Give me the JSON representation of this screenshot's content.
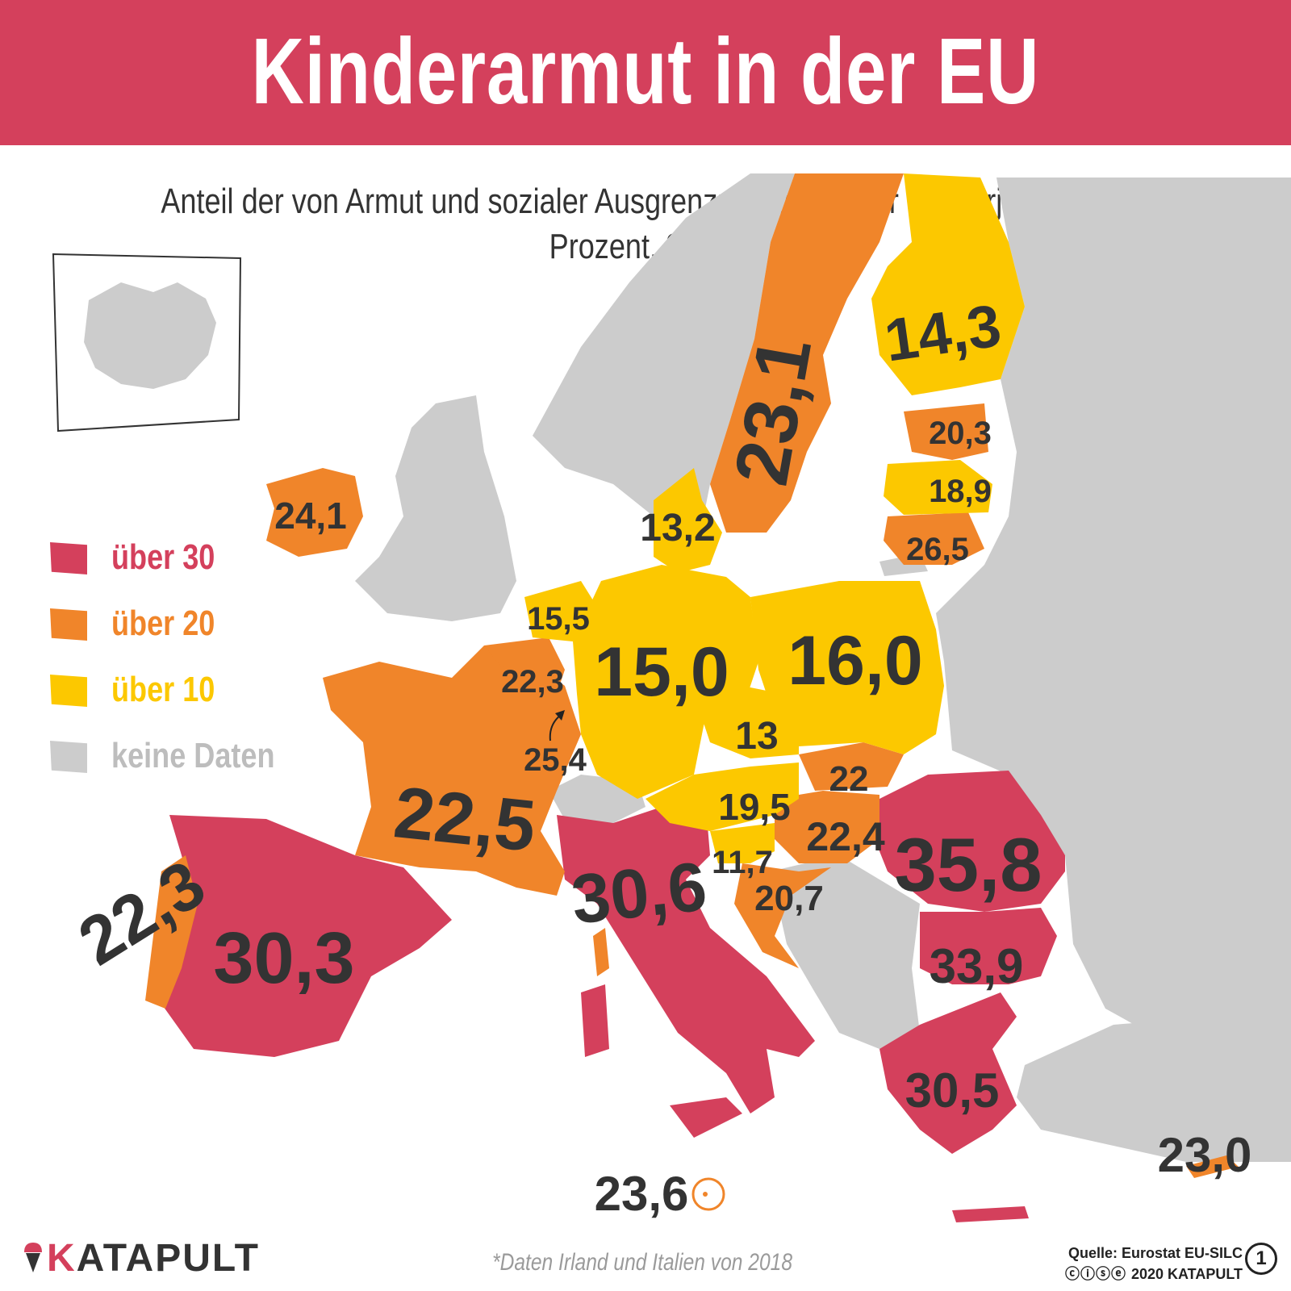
{
  "title": "Kinderarmut in der EU",
  "subtitle": "Anteil der von Armut und sozialer Ausgrenzung bedrohter Minderjähriger, in Prozent, 2019*",
  "colors": {
    "header": "#d4405c",
    "ueber_30": "#d4405c",
    "ueber_20": "#f0852a",
    "ueber_10": "#fcc800",
    "keine_daten": "#cccccc",
    "value_text": "#333333"
  },
  "legend": [
    {
      "label": "über 30",
      "color": "#d4405c"
    },
    {
      "label": "über 20",
      "color": "#f0852a"
    },
    {
      "label": "über 10",
      "color": "#fcc800"
    },
    {
      "label": "keine Daten",
      "color": "#cccccc"
    }
  ],
  "values": [
    {
      "country": "Finnland",
      "value": "14,3"
    },
    {
      "country": "Schweden",
      "value": "23,1"
    },
    {
      "country": "Estland",
      "value": "20,3"
    },
    {
      "country": "Lettland",
      "value": "18,9"
    },
    {
      "country": "Litauen",
      "value": "26,5"
    },
    {
      "country": "Dänemark",
      "value": "13,2"
    },
    {
      "country": "Irland",
      "value": "24,1"
    },
    {
      "country": "Niederlande",
      "value": "15,5"
    },
    {
      "country": "Belgien",
      "value": "22,3"
    },
    {
      "country": "Luxemburg",
      "value": "25,4"
    },
    {
      "country": "Deutschland",
      "value": "15,0"
    },
    {
      "country": "Polen",
      "value": "16,0"
    },
    {
      "country": "Tschechien",
      "value": "13"
    },
    {
      "country": "Slowakei",
      "value": "22"
    },
    {
      "country": "Österreich",
      "value": "19,5"
    },
    {
      "country": "Ungarn",
      "value": "22,4"
    },
    {
      "country": "Slowenien",
      "value": "11,7"
    },
    {
      "country": "Kroatien",
      "value": "20,7"
    },
    {
      "country": "Frankreich",
      "value": "22,5"
    },
    {
      "country": "Rumänien",
      "value": "35,8"
    },
    {
      "country": "Italien",
      "value": "30,6"
    },
    {
      "country": "Portugal",
      "value": "22,3"
    },
    {
      "country": "Spanien",
      "value": "30,3"
    },
    {
      "country": "Bulgarien",
      "value": "33,9"
    },
    {
      "country": "Griechenland",
      "value": "30,5"
    },
    {
      "country": "Zypern",
      "value": "23,0"
    },
    {
      "country": "Malta",
      "value": "23,6"
    }
  ],
  "footnote": "*Daten Irland und Italien von 2018",
  "brand": {
    "first_letter": "K",
    "rest": "ATAPULT"
  },
  "source": {
    "line1": "Quelle: Eurostat EU-SILC",
    "line2": "2020 KATAPULT"
  },
  "page_number": "1"
}
